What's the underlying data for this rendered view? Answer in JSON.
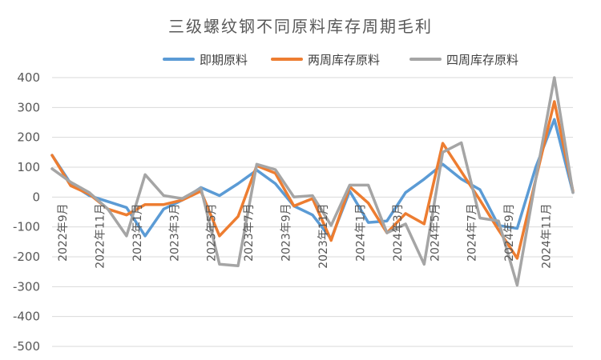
{
  "chart_data": {
    "type": "line",
    "title": "三级螺纹钢不同原料库存周期毛利",
    "legend_position": "top-right",
    "grid": true,
    "ylim": [
      -500,
      400
    ],
    "yticks": [
      400,
      300,
      200,
      100,
      0,
      -100,
      -200,
      -300,
      -400,
      -500
    ],
    "x_tick_labels": [
      "2022年9月",
      "2022年11月",
      "2023年1月",
      "2023年3月",
      "2023年5月",
      "2023年7月",
      "2023年9月",
      "2023年11月",
      "2024年1月",
      "2024年3月",
      "2024年5月",
      "2024年7月",
      "2024年9月",
      "2024年11月"
    ],
    "series": [
      {
        "name": "即期原料",
        "color": "#5B9BD5",
        "values": [
          140,
          45,
          5,
          -15,
          -35,
          -130,
          -40,
          -10,
          32,
          5,
          45,
          90,
          45,
          -30,
          -60,
          -140,
          20,
          -85,
          -80,
          15,
          60,
          110,
          60,
          25,
          -95,
          -105,
          100,
          260,
          15
        ]
      },
      {
        "name": "两周库存原料",
        "color": "#ED7D31",
        "values": [
          140,
          38,
          10,
          -40,
          -60,
          -25,
          -25,
          -10,
          20,
          -130,
          -65,
          105,
          80,
          -30,
          -5,
          -145,
          35,
          -20,
          -120,
          -55,
          -90,
          180,
          85,
          -10,
          -110,
          -205,
          60,
          320,
          20
        ]
      },
      {
        "name": "四周库存原料",
        "color": "#A5A5A5",
        "values": [
          95,
          50,
          15,
          -40,
          -130,
          75,
          5,
          -5,
          30,
          -225,
          -230,
          110,
          92,
          0,
          5,
          -95,
          40,
          40,
          -120,
          -90,
          -225,
          150,
          182,
          -70,
          -80,
          -295,
          60,
          400,
          15
        ]
      }
    ]
  }
}
